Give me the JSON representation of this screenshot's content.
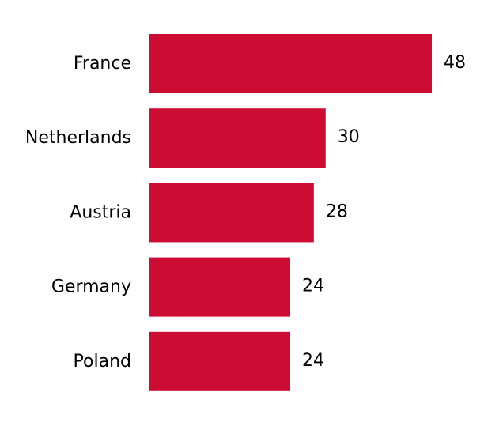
{
  "chart_data": {
    "type": "bar",
    "orientation": "horizontal",
    "title": "",
    "xlabel": "",
    "ylabel": "",
    "categories": [
      "France",
      "Netherlands",
      "Austria",
      "Germany",
      "Poland"
    ],
    "values": [
      48,
      30,
      28,
      24,
      24
    ],
    "value_labels": [
      "48",
      "30",
      "28",
      "24",
      "24"
    ],
    "xlim": [
      0,
      48
    ],
    "grid": false,
    "legend": "none",
    "bar_color": "#cc0c33"
  }
}
